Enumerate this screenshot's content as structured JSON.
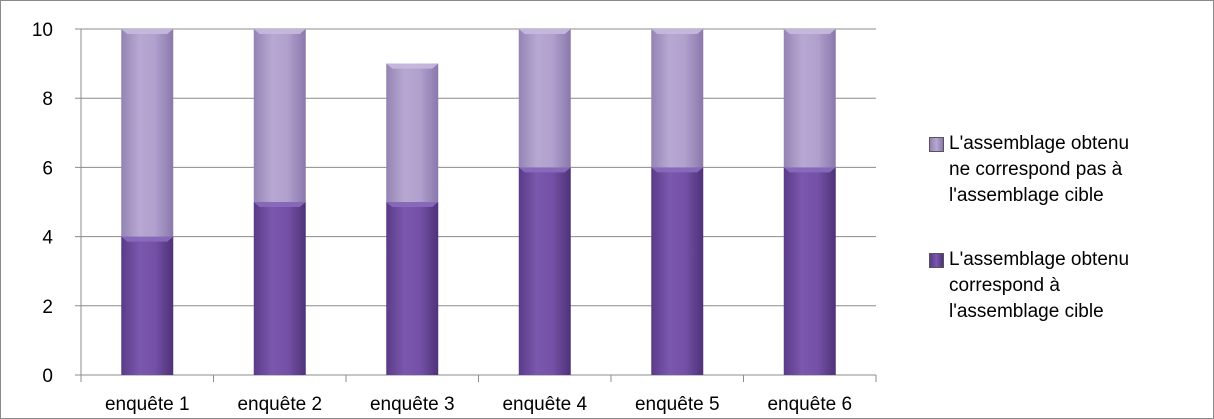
{
  "chart_data": {
    "type": "bar",
    "stacked": true,
    "categories": [
      "enquête 1",
      "enquête 2",
      "enquête 3",
      "enquête 4",
      "enquête 5",
      "enquête 6"
    ],
    "series": [
      {
        "name": "L'assemblage obtenu correspond à l'assemblage cible",
        "values": [
          4,
          5,
          5,
          6,
          6,
          6
        ],
        "color": "#6b4a9c"
      },
      {
        "name": "L'assemblage obtenu ne correspond pas à l'assemblage cible",
        "values": [
          6,
          5,
          4,
          4,
          4,
          4
        ],
        "color": "#a796c4"
      }
    ],
    "ylim": [
      0,
      10
    ],
    "yticks": [
      0,
      2,
      4,
      6,
      8,
      10
    ],
    "grid": true,
    "legend_position": "right"
  },
  "legend": {
    "items": [
      {
        "line1": "L'assemblage obtenu",
        "line2": "ne correspond pas à",
        "line3": "l'assemblage cible",
        "color": "#a796c4"
      },
      {
        "line1": "L'assemblage obtenu",
        "line2": "correspond à",
        "line3": "l'assemblage cible",
        "color": "#6b4a9c"
      }
    ]
  }
}
